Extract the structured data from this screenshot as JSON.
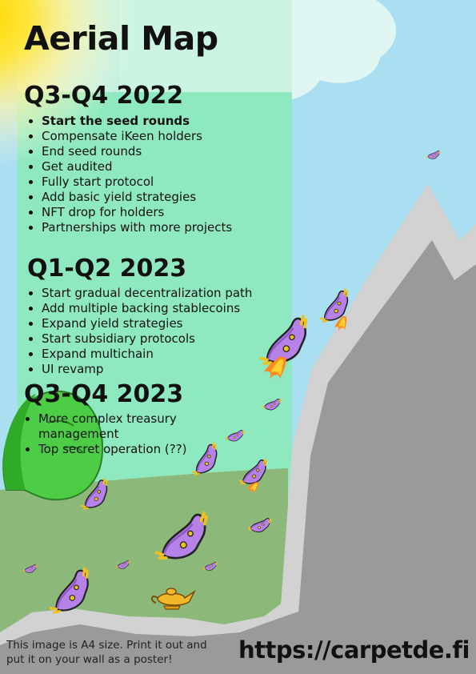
{
  "title": "Aerial Map",
  "phases": [
    {
      "heading": "Q3-Q4 2022",
      "items": [
        "Start the seed rounds",
        "Compensate iKeen holders",
        "End seed rounds",
        "Get audited",
        "Fully start protocol",
        "Add basic yield strategies",
        "NFT drop for holders",
        "Partnerships with more projects"
      ]
    },
    {
      "heading": "Q1-Q2 2023",
      "items": [
        "Start gradual decentralization path",
        "Add multiple backing stablecoins",
        "Expand yield strategies",
        "Start subsidiary protocols",
        "Expand multichain",
        "UI revamp"
      ]
    },
    {
      "heading": "Q3-Q4 2023",
      "items": [
        "More complex treasury management",
        "Top secret operation (??)"
      ]
    }
  ],
  "footer": {
    "note": "This image is A4 size. Print it out and put it on your wall as a poster!",
    "url": "https://carpetde.fi"
  },
  "colors": {
    "sky": "#a9dff0",
    "panel": "#8fe9c0",
    "hill": "#8cb87a",
    "mountain_light": "#d2d2d2",
    "mountain_dark": "#9a9a9a",
    "sun": "#ffe000",
    "carpet": "#b681e8",
    "flame": "#ff7a1a",
    "wojak": "#4ccd45"
  },
  "icons": [
    "sun-icon",
    "cloud-icon",
    "mountain-icon",
    "wojak-icon",
    "flying-carpet-icon",
    "magic-lamp-icon"
  ]
}
